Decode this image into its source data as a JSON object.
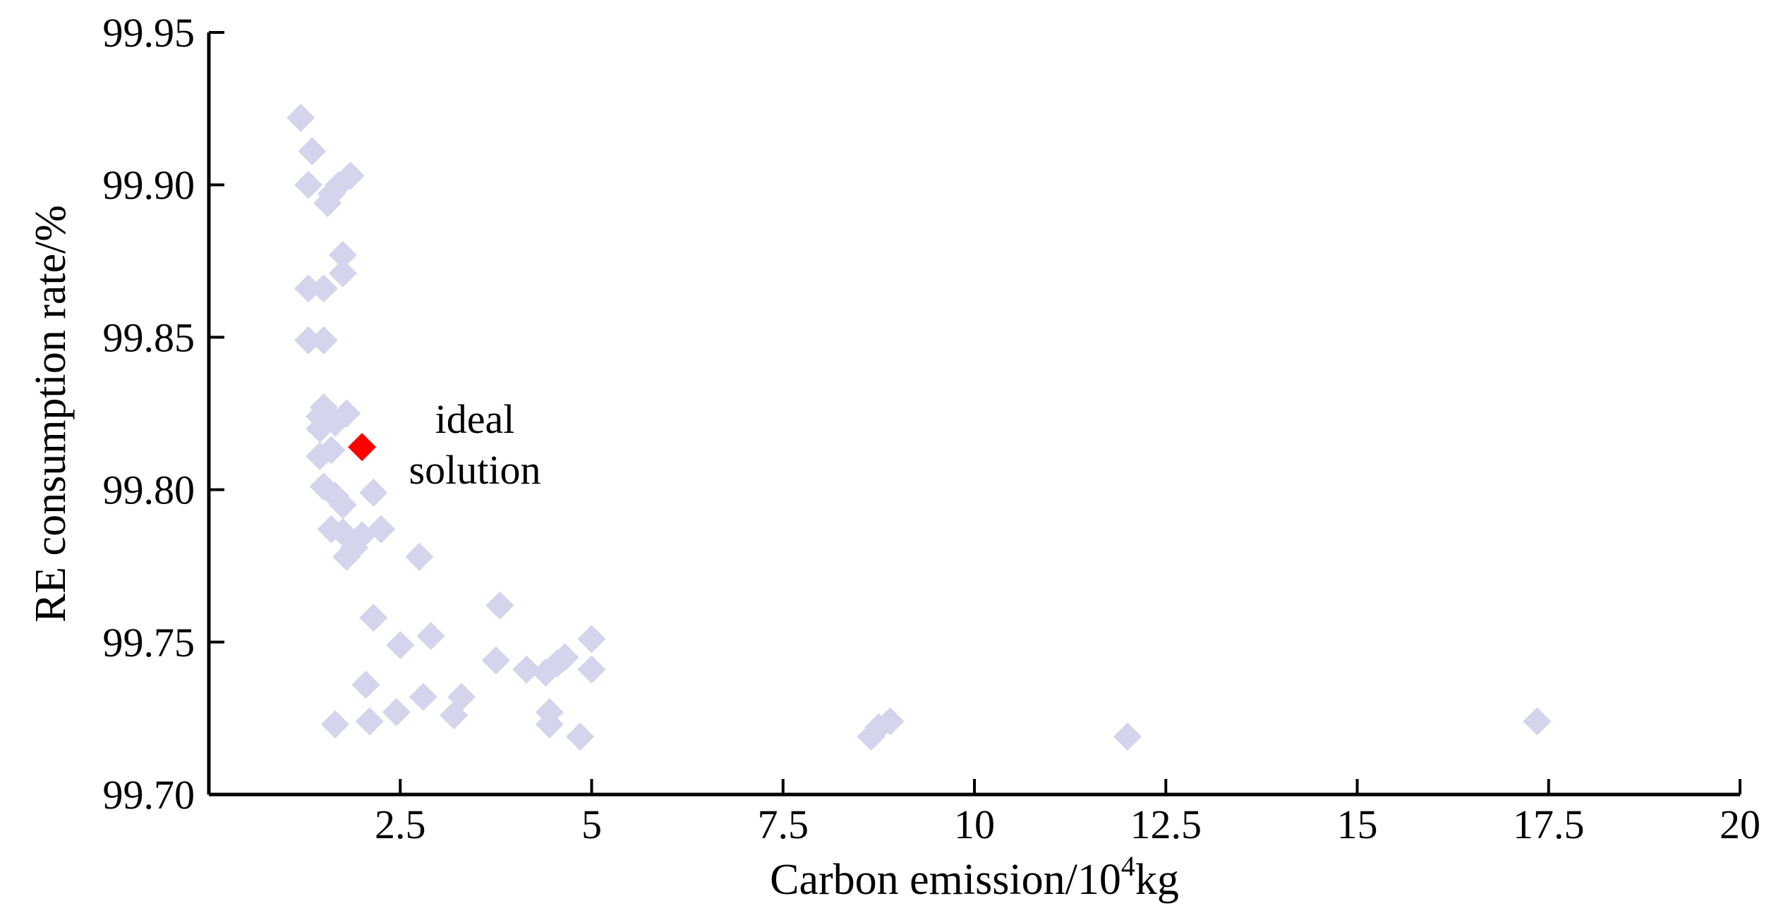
{
  "chart_data": {
    "type": "scatter",
    "xlabel": "Carbon emission/10",
    "xlabel_sup": "4",
    "xlabel_unit": "kg",
    "ylabel": "RE consumption rate/%",
    "xlim": [
      0,
      20
    ],
    "ylim": [
      99.7,
      99.95
    ],
    "xticks": [
      2.5,
      5,
      7.5,
      10,
      12.5,
      15,
      17.5,
      20
    ],
    "xtick_labels": [
      "2.5",
      "5",
      "7.5",
      "10",
      "12.5",
      "15",
      "17.5",
      "20"
    ],
    "yticks": [
      99.7,
      99.75,
      99.8,
      99.85,
      99.9,
      99.95
    ],
    "ytick_labels": [
      "99.70",
      "99.75",
      "99.80",
      "99.85",
      "99.90",
      "99.95"
    ],
    "grid": false,
    "marker": "diamond",
    "point_color": "#d4d4ec",
    "highlight_color": "#ff0000",
    "points": [
      {
        "x": 1.2,
        "y": 99.922
      },
      {
        "x": 1.35,
        "y": 99.911
      },
      {
        "x": 1.3,
        "y": 99.9
      },
      {
        "x": 1.55,
        "y": 99.894
      },
      {
        "x": 1.6,
        "y": 99.897
      },
      {
        "x": 1.7,
        "y": 99.9
      },
      {
        "x": 1.85,
        "y": 99.903
      },
      {
        "x": 1.3,
        "y": 99.866
      },
      {
        "x": 1.5,
        "y": 99.866
      },
      {
        "x": 1.75,
        "y": 99.877
      },
      {
        "x": 1.75,
        "y": 99.871
      },
      {
        "x": 1.3,
        "y": 99.849
      },
      {
        "x": 1.5,
        "y": 99.849
      },
      {
        "x": 1.5,
        "y": 99.827
      },
      {
        "x": 1.45,
        "y": 99.824
      },
      {
        "x": 1.45,
        "y": 99.82
      },
      {
        "x": 1.65,
        "y": 99.822
      },
      {
        "x": 1.8,
        "y": 99.825
      },
      {
        "x": 1.45,
        "y": 99.811
      },
      {
        "x": 1.6,
        "y": 99.813
      },
      {
        "x": 1.5,
        "y": 99.801
      },
      {
        "x": 1.65,
        "y": 99.798
      },
      {
        "x": 1.75,
        "y": 99.795
      },
      {
        "x": 2.15,
        "y": 99.799
      },
      {
        "x": 1.6,
        "y": 99.787
      },
      {
        "x": 1.75,
        "y": 99.786
      },
      {
        "x": 2.0,
        "y": 99.785
      },
      {
        "x": 2.25,
        "y": 99.787
      },
      {
        "x": 1.8,
        "y": 99.778
      },
      {
        "x": 1.9,
        "y": 99.781
      },
      {
        "x": 2.75,
        "y": 99.778
      },
      {
        "x": 2.15,
        "y": 99.758
      },
      {
        "x": 2.5,
        "y": 99.749
      },
      {
        "x": 2.9,
        "y": 99.752
      },
      {
        "x": 3.8,
        "y": 99.762
      },
      {
        "x": 3.75,
        "y": 99.744
      },
      {
        "x": 4.15,
        "y": 99.741
      },
      {
        "x": 4.4,
        "y": 99.74
      },
      {
        "x": 4.55,
        "y": 99.743
      },
      {
        "x": 4.65,
        "y": 99.745
      },
      {
        "x": 5.0,
        "y": 99.751
      },
      {
        "x": 5.0,
        "y": 99.741
      },
      {
        "x": 2.05,
        "y": 99.736
      },
      {
        "x": 2.8,
        "y": 99.732
      },
      {
        "x": 3.3,
        "y": 99.732
      },
      {
        "x": 2.45,
        "y": 99.727
      },
      {
        "x": 3.2,
        "y": 99.726
      },
      {
        "x": 1.65,
        "y": 99.723
      },
      {
        "x": 2.1,
        "y": 99.724
      },
      {
        "x": 4.45,
        "y": 99.727
      },
      {
        "x": 4.45,
        "y": 99.723
      },
      {
        "x": 4.85,
        "y": 99.719
      },
      {
        "x": 8.65,
        "y": 99.719
      },
      {
        "x": 8.75,
        "y": 99.722
      },
      {
        "x": 8.9,
        "y": 99.724
      },
      {
        "x": 12.0,
        "y": 99.719
      },
      {
        "x": 17.35,
        "y": 99.724
      }
    ],
    "highlight_point": {
      "x": 2.0,
      "y": 99.814
    },
    "annotation": [
      "ideal",
      "solution"
    ]
  }
}
